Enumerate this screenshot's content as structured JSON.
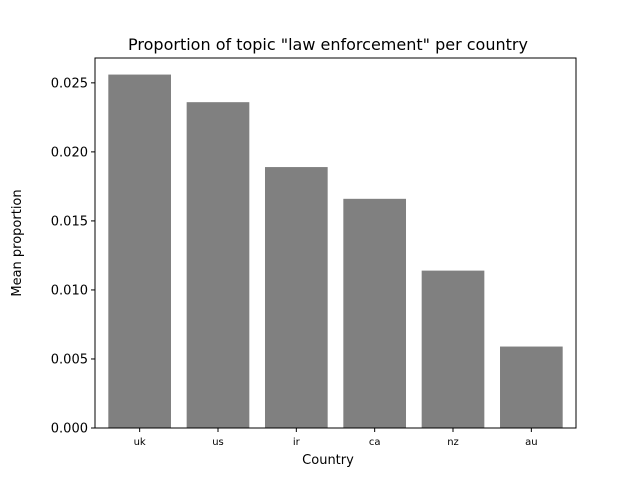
{
  "chart_data": {
    "type": "bar",
    "title": "Proportion of topic \"law enforcement\" per country",
    "xlabel": "Country",
    "ylabel": "Mean proportion",
    "categories": [
      "uk",
      "us",
      "ir",
      "ca",
      "nz",
      "au"
    ],
    "values": [
      0.0256,
      0.0236,
      0.0189,
      0.0166,
      0.0114,
      0.0059
    ],
    "ylim": [
      0,
      0.0268
    ],
    "yticks": [
      0.0,
      0.005,
      0.01,
      0.015,
      0.02,
      0.025
    ],
    "ytick_labels": [
      "0.000",
      "0.005",
      "0.010",
      "0.015",
      "0.020",
      "0.025"
    ],
    "grid": false,
    "legend": "none",
    "bar_color": "#808080"
  }
}
